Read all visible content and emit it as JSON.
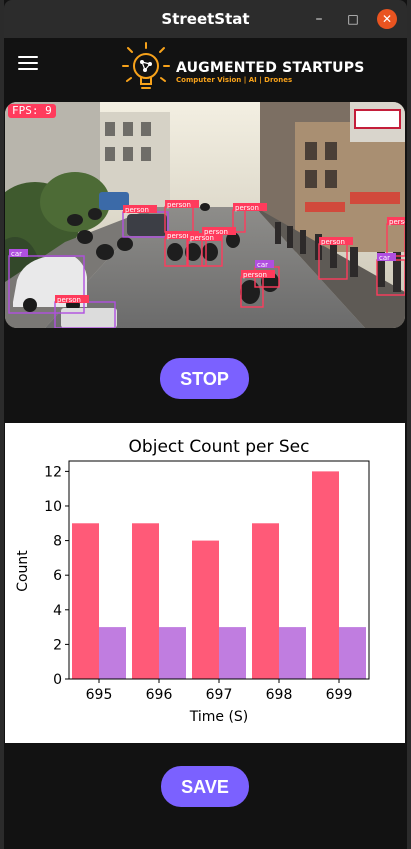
{
  "window": {
    "title": "StreetStat"
  },
  "titlebar": {
    "minimize_icon": "minimize-icon",
    "maximize_icon": "maximize-icon",
    "close_icon": "close-icon"
  },
  "appbar": {
    "menu_icon": "hamburger-menu-icon",
    "brand": "AUGMENTED STARTUPS",
    "tagline": "Computer Vision | AI | Drones"
  },
  "video": {
    "fps_label": "FPS: 9",
    "detections": [
      "car",
      "person",
      "person",
      "person",
      "person",
      "person",
      "person",
      "person",
      "person",
      "car",
      "person",
      "car",
      "person",
      "person"
    ]
  },
  "controls": {
    "stop_label": "STOP",
    "save_label": "SAVE"
  },
  "colors": {
    "accent": "#7b61ff",
    "series1": "#ff5a78",
    "series2": "#c07de0",
    "fps_bg": "#ff3b5c"
  },
  "chart_data": {
    "type": "bar",
    "title": "Object Count per Sec",
    "xlabel": "Time (S)",
    "ylabel": "Count",
    "categories": [
      "695",
      "696",
      "697",
      "698",
      "699"
    ],
    "series": [
      {
        "values": [
          9,
          9,
          8,
          9,
          12
        ],
        "color": "#ff5a78"
      },
      {
        "values": [
          3,
          3,
          3,
          3,
          3
        ],
        "color": "#c07de0"
      }
    ],
    "ylim": [
      0,
      12.6
    ],
    "yticks": [
      0,
      2,
      4,
      6,
      8,
      10,
      12
    ],
    "grid": false
  }
}
